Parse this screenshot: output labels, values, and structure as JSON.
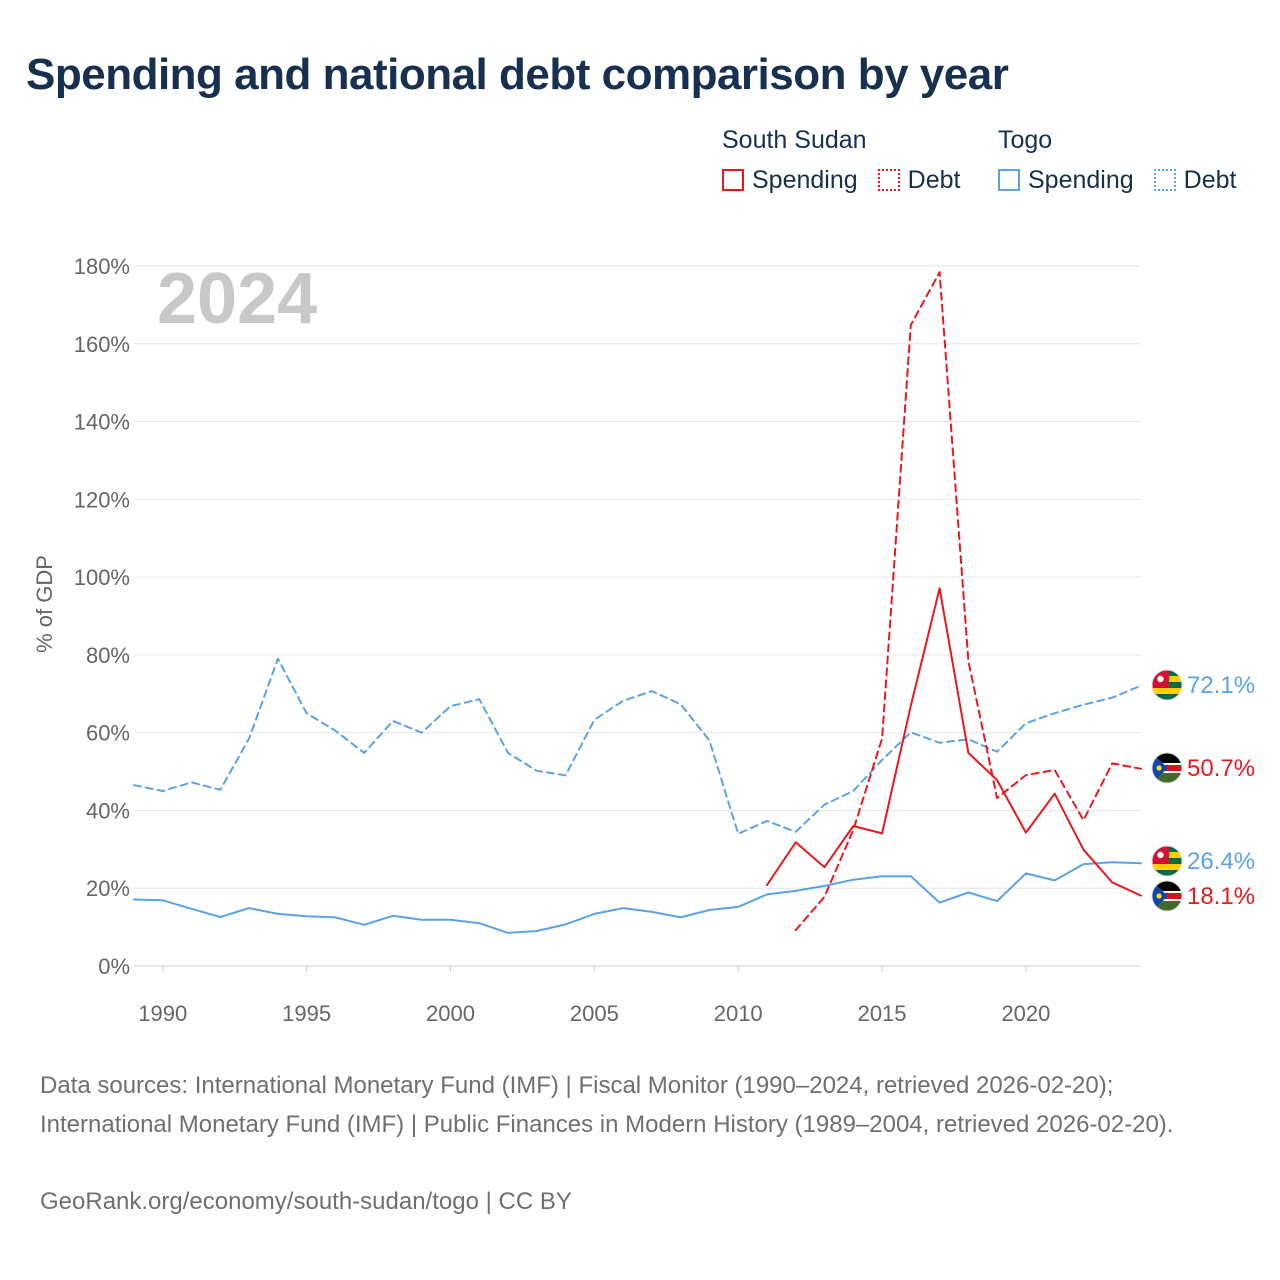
{
  "title": "Spending and national debt comparison by year",
  "legend": {
    "groups": [
      {
        "country": "South Sudan",
        "color": "#e8191d",
        "items": [
          "Spending",
          "Debt"
        ]
      },
      {
        "country": "Togo",
        "color": "#5ba3e6",
        "items": [
          "Spending",
          "Debt"
        ]
      }
    ]
  },
  "year_watermark": "2024",
  "source": "Data sources: International Monetary Fund (IMF) | Fiscal Monitor (1990–2024, retrieved 2026-02-20); International Monetary Fund (IMF) | Public Finances in Modern History (1989–2004, retrieved 2026-02-20).",
  "credit": "GeoRank.org/economy/south-sudan/togo | CC BY",
  "chart_data": {
    "type": "line",
    "title": "Spending and national debt comparison by year",
    "xlabel": "",
    "ylabel": "% of GDP",
    "xlim": [
      1989,
      2024
    ],
    "ylim": [
      0,
      180
    ],
    "x_ticks": [
      1990,
      1995,
      2000,
      2005,
      2010,
      2015,
      2020
    ],
    "x_tick_labels": [
      "1990",
      "1995",
      "2000",
      "2005",
      "2010",
      "2015",
      "2020"
    ],
    "y_ticks": [
      0,
      20,
      40,
      60,
      80,
      100,
      120,
      140,
      160,
      180
    ],
    "y_tick_labels": [
      "0%",
      "20%",
      "40%",
      "60%",
      "80%",
      "100%",
      "120%",
      "140%",
      "160%",
      "180%"
    ],
    "grid": true,
    "series": [
      {
        "name": "Togo Debt",
        "country": "Togo",
        "measure": "Debt",
        "color": "#5ba3e6",
        "dash": "dashed",
        "x": [
          1989,
          1990,
          1991,
          1992,
          1993,
          1994,
          1995,
          1996,
          1997,
          1998,
          1999,
          2000,
          2001,
          2002,
          2003,
          2004,
          2005,
          2006,
          2007,
          2008,
          2009,
          2010,
          2011,
          2012,
          2013,
          2014,
          2015,
          2016,
          2017,
          2018,
          2019,
          2020,
          2021,
          2022,
          2023,
          2024
        ],
        "values": [
          46.5,
          45,
          47.2,
          45.3,
          58.5,
          79,
          65,
          60.5,
          54.8,
          63,
          60,
          66.8,
          68.6,
          54.8,
          50.2,
          49,
          63.3,
          68.2,
          70.7,
          67.3,
          58,
          34,
          37.3,
          34.5,
          41.5,
          45,
          53,
          60.1,
          57.4,
          58.3,
          55.1,
          62.4,
          65,
          67.2,
          69,
          72.1
        ],
        "end_label": "72.1%"
      },
      {
        "name": "Togo Spending",
        "country": "Togo",
        "measure": "Spending",
        "color": "#5ba3e6",
        "dash": "solid",
        "x": [
          1989,
          1990,
          1991,
          1992,
          1993,
          1994,
          1995,
          1996,
          1997,
          1998,
          1999,
          2000,
          2001,
          2002,
          2003,
          2004,
          2005,
          2006,
          2007,
          2008,
          2009,
          2010,
          2011,
          2012,
          2013,
          2014,
          2015,
          2016,
          2017,
          2018,
          2019,
          2020,
          2021,
          2022,
          2023,
          2024
        ],
        "values": [
          17.1,
          16.9,
          14.7,
          12.6,
          14.9,
          13.4,
          12.8,
          12.5,
          10.6,
          12.9,
          11.9,
          11.9,
          11,
          8.5,
          9,
          10.7,
          13.4,
          14.9,
          13.9,
          12.5,
          14.4,
          15.2,
          18.4,
          19.3,
          20.6,
          22.2,
          23.1,
          23.1,
          16.3,
          18.9,
          16.7,
          23.8,
          22,
          26.2,
          26.7,
          26.4
        ],
        "end_label": "26.4%"
      },
      {
        "name": "South Sudan Debt",
        "country": "South Sudan",
        "measure": "Debt",
        "color": "#e8191d",
        "dash": "dashed",
        "x": [
          2012,
          2013,
          2014,
          2015,
          2016,
          2017,
          2018,
          2019,
          2020,
          2021,
          2022,
          2023,
          2024
        ],
        "values": [
          9.2,
          17.8,
          35,
          58.5,
          164.8,
          178.4,
          78.4,
          43.2,
          49.1,
          50.4,
          37.5,
          52.1,
          50.7
        ],
        "end_label": "50.7%"
      },
      {
        "name": "South Sudan Spending",
        "country": "South Sudan",
        "measure": "Spending",
        "color": "#e8191d",
        "dash": "solid",
        "x": [
          2011,
          2012,
          2013,
          2014,
          2015,
          2016,
          2017,
          2018,
          2019,
          2020,
          2021,
          2022,
          2023,
          2024
        ],
        "values": [
          20.8,
          31.8,
          25.4,
          36,
          34.1,
          66.9,
          97.1,
          54.8,
          47.8,
          34.3,
          44.3,
          29.9,
          21.5,
          18.1
        ],
        "end_label": "18.1%"
      }
    ]
  }
}
